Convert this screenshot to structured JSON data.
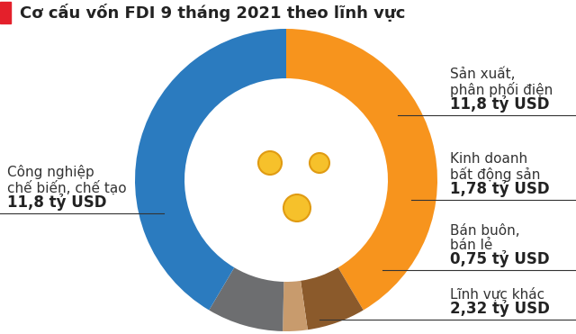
{
  "chart_data": {
    "type": "donut",
    "title": "Cơ cấu vốn FDI 9 tháng 2021 theo lĩnh vực",
    "categories": [
      "Sản xuất,\nphân phối điện",
      "Kinh doanh\nbất động sản",
      "Bán buôn,\nbán lẻ",
      "Lĩnh vực khác",
      "Công nghiệp\nchế biến, chế tạo"
    ],
    "values": [
      11.8,
      1.78,
      0.75,
      2.32,
      11.8
    ],
    "value_labels": [
      "11,8 tỷ USD",
      "1,78 tỷ USD",
      "0,75 tỷ USD",
      "2,32 tỷ USD",
      "11,8 tỷ USD"
    ],
    "colors": [
      "#f7941d",
      "#8b5a2b",
      "#c89b6d",
      "#6d6e70",
      "#2b7bbf"
    ],
    "data_labels": true
  }
}
